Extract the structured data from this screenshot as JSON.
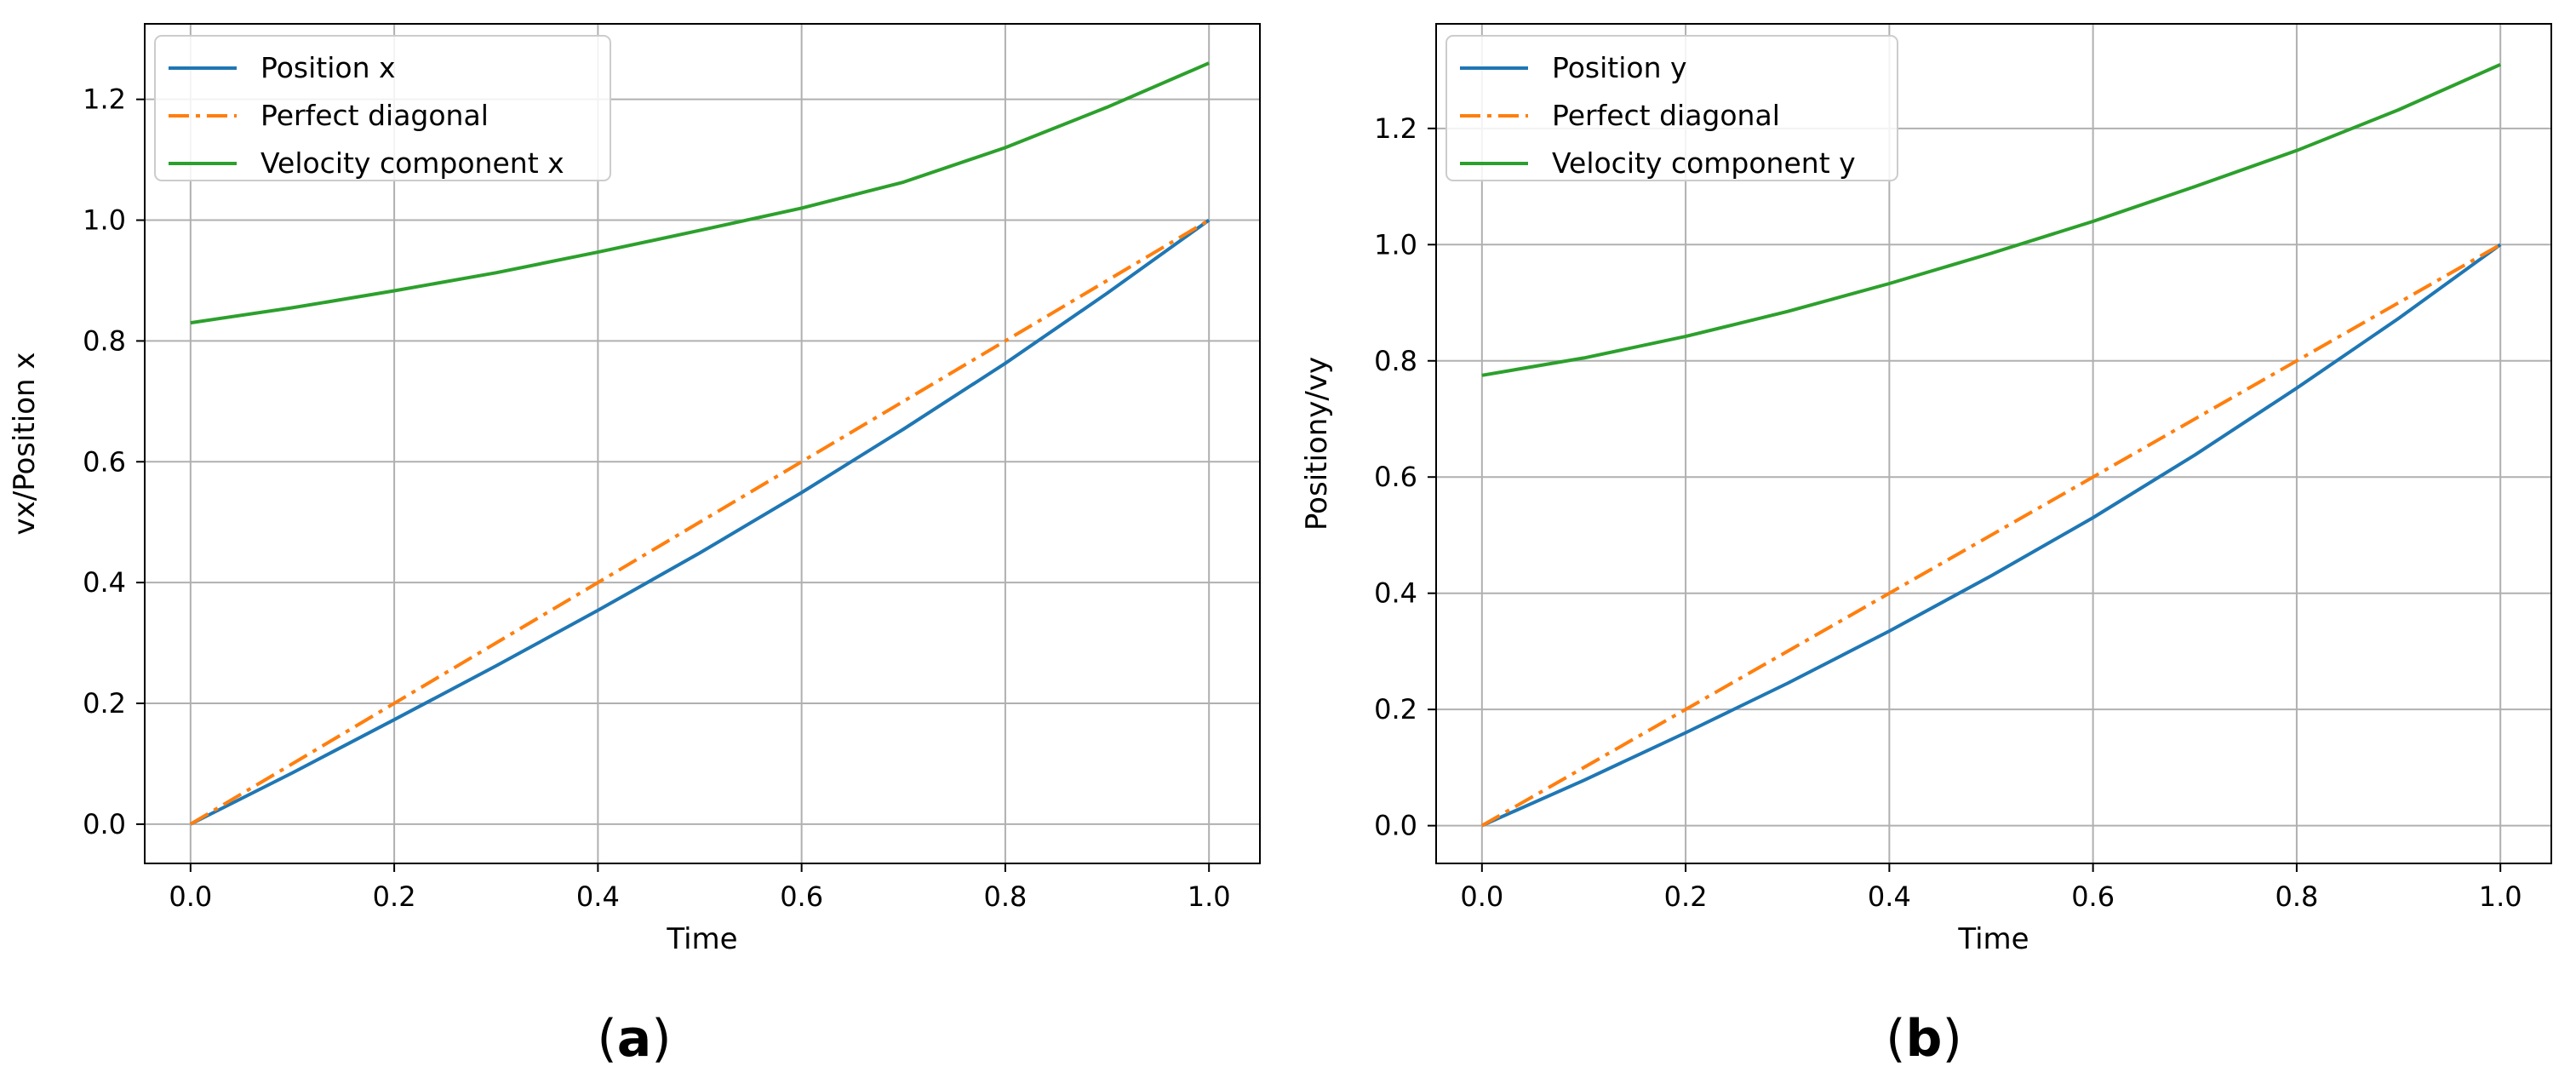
{
  "chart_data": [
    {
      "type": "line",
      "panel_label": "(a)",
      "title": "",
      "xlabel": "Time",
      "ylabel": "vx/Position x",
      "xlim": [
        -0.045,
        1.05
      ],
      "ylim": [
        -0.065,
        1.325
      ],
      "xticks": [
        0.0,
        0.2,
        0.4,
        0.6,
        0.8,
        1.0
      ],
      "yticks": [
        0.0,
        0.2,
        0.4,
        0.6,
        0.8,
        1.0,
        1.2
      ],
      "grid": true,
      "legend_position": "upper-left",
      "series": [
        {
          "name": "Position x",
          "color": "#1f77b4",
          "style": "solid",
          "x": [
            0.0,
            0.1,
            0.2,
            0.3,
            0.4,
            0.5,
            0.6,
            0.7,
            0.8,
            0.9,
            1.0
          ],
          "y": [
            0.0,
            0.085,
            0.173,
            0.262,
            0.354,
            0.449,
            0.549,
            0.654,
            0.763,
            0.879,
            1.0
          ]
        },
        {
          "name": "Perfect diagonal",
          "color": "#ff7f0e",
          "style": "dashdot",
          "x": [
            0.0,
            1.0
          ],
          "y": [
            0.0,
            1.0
          ]
        },
        {
          "name": "Velocity component x",
          "color": "#2ca02c",
          "style": "solid",
          "x": [
            0.0,
            0.1,
            0.2,
            0.3,
            0.4,
            0.5,
            0.6,
            0.7,
            0.8,
            0.9,
            1.0
          ],
          "y": [
            0.83,
            0.855,
            0.883,
            0.913,
            0.947,
            0.983,
            1.02,
            1.063,
            1.12,
            1.187,
            1.26
          ]
        }
      ]
    },
    {
      "type": "line",
      "panel_label": "(b)",
      "title": "",
      "xlabel": "Time",
      "ylabel": "Positiony/vy",
      "xlim": [
        -0.045,
        1.05
      ],
      "ylim": [
        -0.065,
        1.38
      ],
      "xticks": [
        0.0,
        0.2,
        0.4,
        0.6,
        0.8,
        1.0
      ],
      "yticks": [
        0.0,
        0.2,
        0.4,
        0.6,
        0.8,
        1.0,
        1.2
      ],
      "grid": true,
      "legend_position": "upper-left",
      "series": [
        {
          "name": "Position y",
          "color": "#1f77b4",
          "style": "solid",
          "x": [
            0.0,
            0.1,
            0.2,
            0.3,
            0.4,
            0.5,
            0.6,
            0.7,
            0.8,
            0.9,
            1.0
          ],
          "y": [
            0.0,
            0.078,
            0.16,
            0.245,
            0.335,
            0.43,
            0.53,
            0.638,
            0.753,
            0.873,
            1.0
          ]
        },
        {
          "name": "Perfect diagonal",
          "color": "#ff7f0e",
          "style": "dashdot",
          "x": [
            0.0,
            1.0
          ],
          "y": [
            0.0,
            1.0
          ]
        },
        {
          "name": "Velocity component y",
          "color": "#2ca02c",
          "style": "solid",
          "x": [
            0.0,
            0.1,
            0.2,
            0.3,
            0.4,
            0.5,
            0.6,
            0.7,
            0.8,
            0.9,
            1.0
          ],
          "y": [
            0.775,
            0.805,
            0.842,
            0.885,
            0.933,
            0.985,
            1.04,
            1.1,
            1.162,
            1.232,
            1.31
          ]
        }
      ]
    }
  ]
}
